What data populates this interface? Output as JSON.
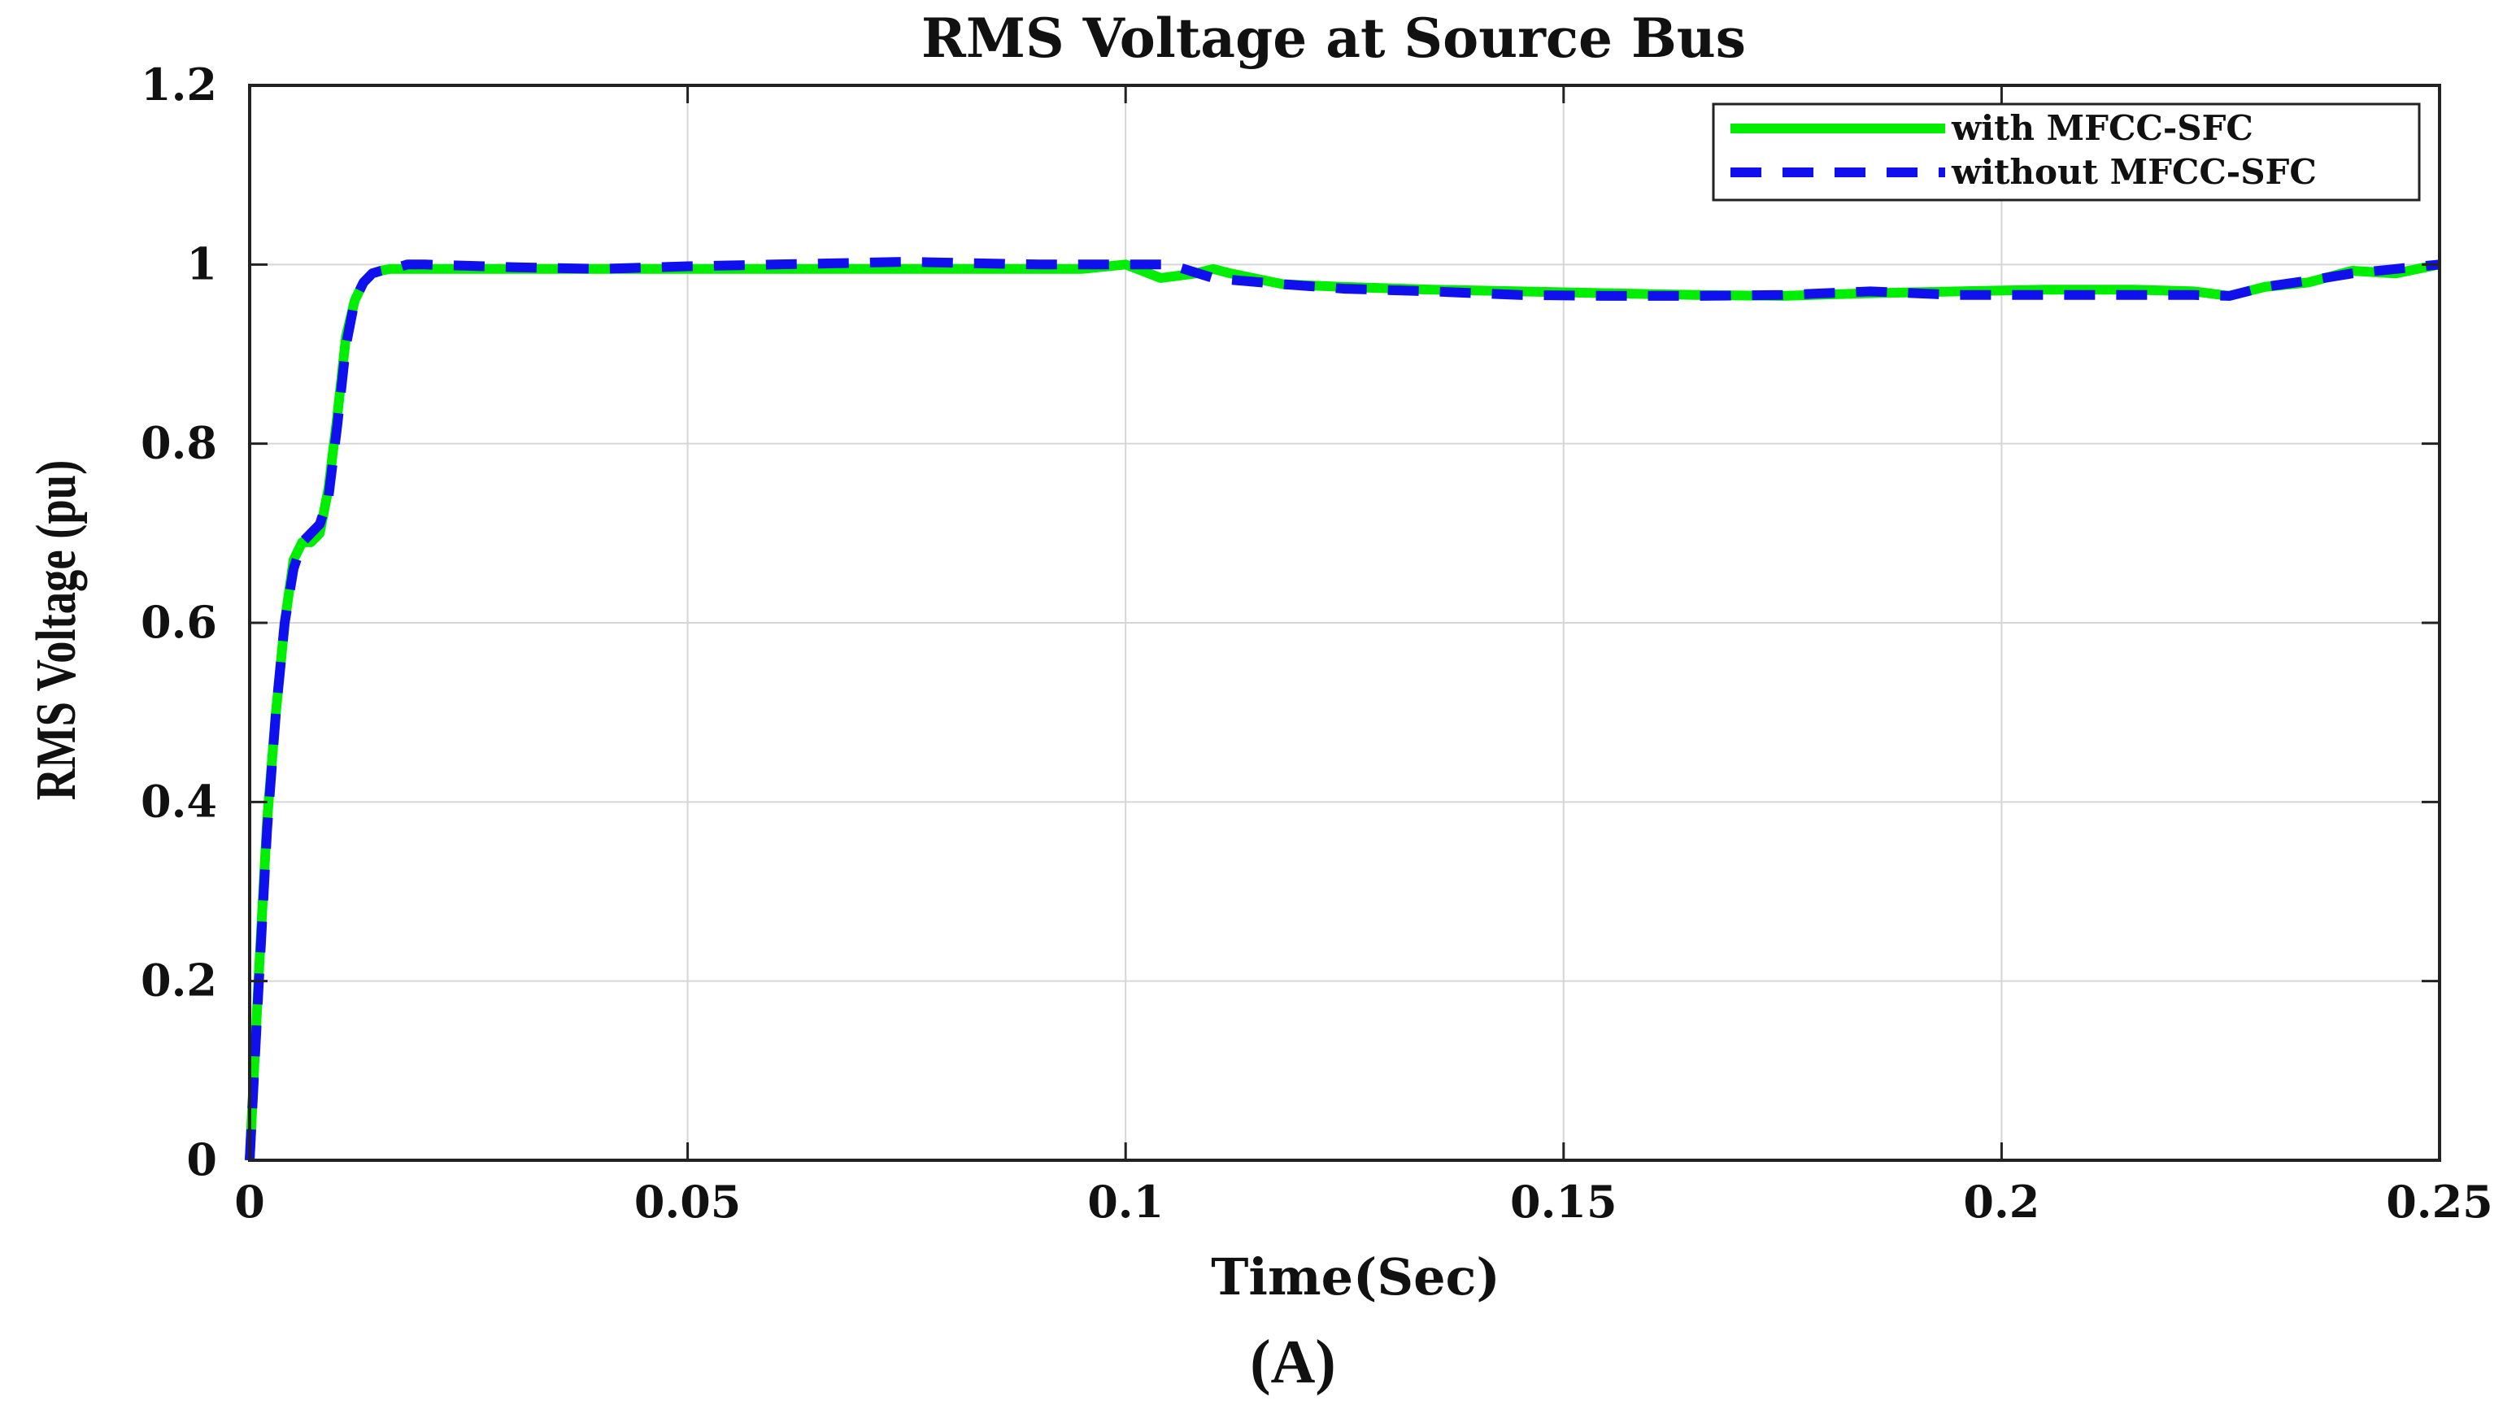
{
  "chart_data": {
    "type": "line",
    "title": "RMS Voltage at Source Bus",
    "xlabel": "Time(Sec)",
    "ylabel": "RMS Voltage (pu)",
    "caption": "(A)",
    "xlim": [
      0,
      0.25
    ],
    "ylim": [
      0,
      1.2
    ],
    "xticks": [
      0,
      0.05,
      0.1,
      0.15,
      0.2,
      0.25
    ],
    "xtick_labels": [
      "0",
      "0.05",
      "0.1",
      "0.15",
      "0.2",
      "0.25"
    ],
    "yticks": [
      0,
      0.2,
      0.4,
      0.6,
      0.8,
      1.0,
      1.2
    ],
    "ytick_labels": [
      "0",
      "0.2",
      "0.4",
      "0.6",
      "0.8",
      "1",
      "1.2"
    ],
    "grid": true,
    "legend_position": "top-right",
    "series": [
      {
        "name": "with MFCC-SFC",
        "color": "#00ee00",
        "style": "solid",
        "x": [
          0,
          0.001,
          0.002,
          0.003,
          0.004,
          0.005,
          0.006,
          0.007,
          0.008,
          0.009,
          0.01,
          0.011,
          0.012,
          0.013,
          0.014,
          0.015,
          0.016,
          0.017,
          0.018,
          0.02,
          0.03,
          0.04,
          0.05,
          0.06,
          0.07,
          0.08,
          0.09,
          0.095,
          0.1,
          0.104,
          0.108,
          0.11,
          0.112,
          0.118,
          0.125,
          0.135,
          0.145,
          0.155,
          0.165,
          0.175,
          0.185,
          0.195,
          0.205,
          0.215,
          0.222,
          0.226,
          0.23,
          0.235,
          0.24,
          0.245,
          0.25
        ],
        "y": [
          0.0,
          0.2,
          0.38,
          0.5,
          0.6,
          0.67,
          0.69,
          0.69,
          0.7,
          0.75,
          0.83,
          0.92,
          0.96,
          0.98,
          0.99,
          0.993,
          0.995,
          0.995,
          0.995,
          0.995,
          0.995,
          0.995,
          0.995,
          0.995,
          0.995,
          0.995,
          0.995,
          0.995,
          1.0,
          0.985,
          0.99,
          0.995,
          0.99,
          0.978,
          0.975,
          0.972,
          0.97,
          0.968,
          0.966,
          0.965,
          0.968,
          0.97,
          0.972,
          0.972,
          0.97,
          0.965,
          0.975,
          0.98,
          0.993,
          0.99,
          1.0
        ]
      },
      {
        "name": "without MFCC-SFC",
        "color": "#1010ee",
        "style": "dashed",
        "x": [
          0,
          0.001,
          0.002,
          0.003,
          0.004,
          0.005,
          0.006,
          0.007,
          0.008,
          0.009,
          0.01,
          0.011,
          0.012,
          0.013,
          0.014,
          0.015,
          0.016,
          0.017,
          0.018,
          0.02,
          0.03,
          0.04,
          0.05,
          0.06,
          0.07,
          0.075,
          0.08,
          0.09,
          0.095,
          0.1,
          0.105,
          0.11,
          0.112,
          0.118,
          0.125,
          0.135,
          0.145,
          0.155,
          0.165,
          0.175,
          0.185,
          0.195,
          0.205,
          0.215,
          0.222,
          0.226,
          0.23,
          0.235,
          0.24,
          0.245,
          0.25
        ],
        "y": [
          0.0,
          0.19,
          0.37,
          0.5,
          0.6,
          0.66,
          0.69,
          0.7,
          0.71,
          0.74,
          0.82,
          0.91,
          0.96,
          0.98,
          0.99,
          0.993,
          0.995,
          0.997,
          1.0,
          1.0,
          0.997,
          0.995,
          0.998,
          1.0,
          1.002,
          1.003,
          1.002,
          1.0,
          1.0,
          1.0,
          1.0,
          0.985,
          0.983,
          0.978,
          0.973,
          0.97,
          0.966,
          0.965,
          0.965,
          0.966,
          0.97,
          0.966,
          0.966,
          0.966,
          0.966,
          0.965,
          0.975,
          0.982,
          0.99,
          0.995,
          1.0
        ]
      }
    ]
  }
}
